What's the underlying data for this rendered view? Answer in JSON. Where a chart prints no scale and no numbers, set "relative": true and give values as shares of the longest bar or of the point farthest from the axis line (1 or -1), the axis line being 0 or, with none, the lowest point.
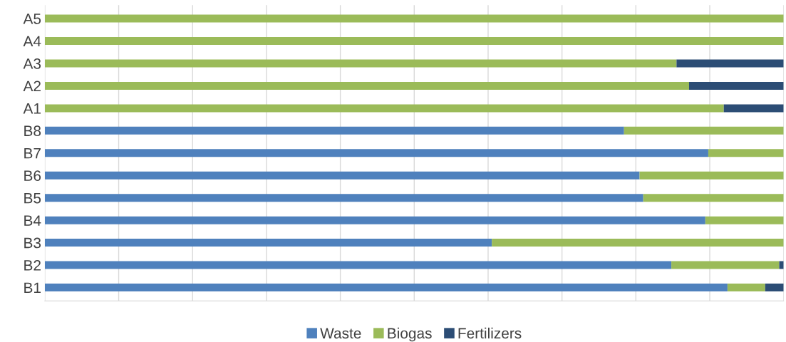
{
  "chart_data": {
    "type": "bar",
    "orientation": "horizontal",
    "stacked": true,
    "relative": true,
    "categories": [
      "A5",
      "A4",
      "A3",
      "A2",
      "A1",
      "B8",
      "B7",
      "B6",
      "B5",
      "B4",
      "B3",
      "B2",
      "B1"
    ],
    "series": [
      {
        "name": "Waste",
        "color": "#4f81bd",
        "values": [
          null,
          null,
          null,
          null,
          null,
          0.784,
          0.898,
          0.805,
          0.81,
          0.894,
          0.605,
          0.848,
          0.924
        ]
      },
      {
        "name": "Biogas",
        "color": "#9bbb59",
        "values": [
          1,
          1,
          0.855,
          0.872,
          0.919,
          0.216,
          0.102,
          0.195,
          0.19,
          0.106,
          0.395,
          0.146,
          0.051
        ]
      },
      {
        "name": "Fertilizers",
        "color": "#2c4d75",
        "values": [
          null,
          null,
          0.145,
          0.128,
          0.081,
          null,
          null,
          null,
          null,
          null,
          null,
          0.006,
          0.025
        ]
      }
    ],
    "grid": "x",
    "legend": "bottom"
  }
}
